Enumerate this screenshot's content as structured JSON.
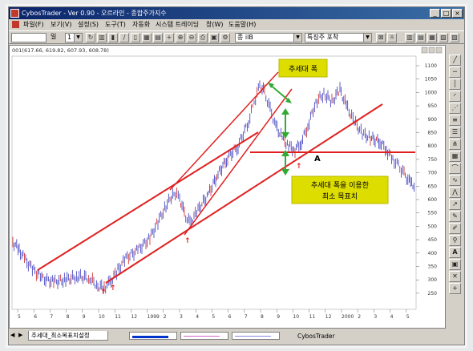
{
  "window": {
    "title": "CybosTrader - Ver 0.90 - 오르라인 - 종합주가지수",
    "buttons": [
      "_",
      "□",
      "×"
    ]
  },
  "menu": [
    "파일(F)",
    "보기(V)",
    "설정(S)",
    "도구(T)",
    "자동화",
    "시스템 트레이딩",
    "창(W)",
    "도움말(H)"
  ],
  "toolbar": {
    "period_value": "일",
    "count_value": "1",
    "code_value": "종 ilB",
    "indicator_value": "특징주 포착"
  },
  "chart": {
    "header": "001(617.66, 619.82, 607.93, 608.78)",
    "label_trend_width": "추세대 폭",
    "label_target": [
      "추세대 폭을 이용한",
      "최소 목표치"
    ],
    "point_label": "A",
    "y_ticks": [
      "1100",
      "1050",
      "1000",
      "950",
      "900",
      "850",
      "800",
      "750",
      "700",
      "650",
      "600",
      "550",
      "500",
      "450",
      "400",
      "350",
      "300",
      "250"
    ],
    "x_ticks": [
      "5",
      "6",
      "7",
      "8",
      "9",
      "10",
      "11",
      "12",
      "1999",
      "2",
      "3",
      "4",
      "5",
      "6",
      "7",
      "8",
      "9",
      "10",
      "11",
      "12",
      "2000",
      "2",
      "3",
      "4",
      "5"
    ],
    "colors": {
      "price": "#3333bb",
      "trend": "#e02020",
      "arrow": "#33aa33",
      "callout": "#dddd00"
    }
  },
  "status": {
    "tab_label": "추세대_최소목표치설정",
    "app_name": "CybosTrader"
  }
}
